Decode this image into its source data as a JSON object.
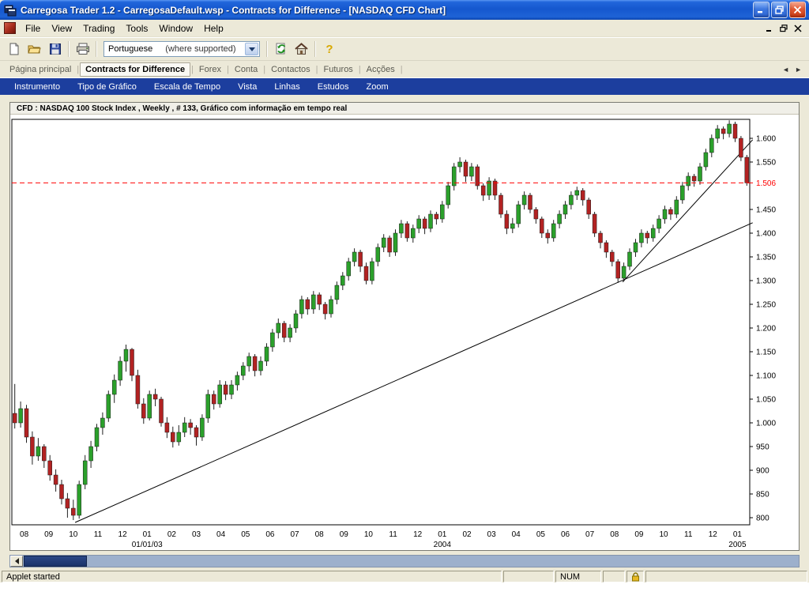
{
  "window": {
    "title": "Carregosa Trader 1.2 - CarregosaDefault.wsp - Contracts for Difference - [NASDAQ CFD Chart]"
  },
  "menu": {
    "items": [
      "File",
      "View",
      "Trading",
      "Tools",
      "Window",
      "Help"
    ]
  },
  "toolbar": {
    "language_value": "Portuguese",
    "language_note": "(where supported)"
  },
  "tabs": {
    "items": [
      {
        "label": "Página principal",
        "active": false
      },
      {
        "label": "Contracts for Difference",
        "active": true
      },
      {
        "label": "Forex",
        "active": false
      },
      {
        "label": "Conta",
        "active": false
      },
      {
        "label": "Contactos",
        "active": false
      },
      {
        "label": "Futuros",
        "active": false
      },
      {
        "label": "Acções",
        "active": false
      }
    ]
  },
  "chart_menu": {
    "items": [
      "Instrumento",
      "Tipo de Gráfico",
      "Escala de Tempo",
      "Vista",
      "Linhas",
      "Estudos",
      "Zoom"
    ]
  },
  "icons": {
    "tab_scroll_left": "◄",
    "tab_scroll_right": "►"
  },
  "status_bar": {
    "message": "Applet started",
    "num": "NUM"
  },
  "chart_data": {
    "type": "candlestick",
    "title": "CFD : NASDAQ 100 Stock Index , Weekly , # 133, Gráfico com informação em tempo real",
    "instrument": "NASDAQ 100 Stock Index",
    "timeframe": "Weekly",
    "colors": {
      "up": "#2BA02B",
      "down": "#B22222",
      "wick": "#222222",
      "trendline": "#000000"
    },
    "y_axis": {
      "min": 785,
      "max": 1640,
      "ticks": [
        {
          "v": 800,
          "label": "800"
        },
        {
          "v": 850,
          "label": "850"
        },
        {
          "v": 900,
          "label": "900"
        },
        {
          "v": 950,
          "label": "950"
        },
        {
          "v": 1000,
          "label": "1.000"
        },
        {
          "v": 1050,
          "label": "1.050"
        },
        {
          "v": 1100,
          "label": "1.100"
        },
        {
          "v": 1150,
          "label": "1.150"
        },
        {
          "v": 1200,
          "label": "1.200"
        },
        {
          "v": 1250,
          "label": "1.250"
        },
        {
          "v": 1300,
          "label": "1.300"
        },
        {
          "v": 1350,
          "label": "1.350"
        },
        {
          "v": 1400,
          "label": "1.400"
        },
        {
          "v": 1450,
          "label": "1.450"
        },
        {
          "v": 1550,
          "label": "1.550"
        },
        {
          "v": 1600,
          "label": "1.600"
        }
      ]
    },
    "current_price": {
      "value": 1506,
      "label": "1.506",
      "color": "#FF0000"
    },
    "x_axis": {
      "month_labels": [
        "08",
        "09",
        "10",
        "11",
        "12",
        "01",
        "02",
        "03",
        "04",
        "05",
        "06",
        "07",
        "08",
        "09",
        "10",
        "11",
        "12",
        "01",
        "02",
        "03",
        "04",
        "05",
        "06",
        "07",
        "08",
        "09",
        "10",
        "11",
        "12",
        "01"
      ],
      "year_labels": [
        {
          "index": 5,
          "label": "01/01/03"
        },
        {
          "index": 17,
          "label": "2004"
        },
        {
          "index": 29,
          "label": "2005"
        }
      ]
    },
    "trendlines": [
      {
        "i1": 10.3,
        "p1": 790,
        "i2": 126,
        "p2": 1422
      },
      {
        "i1": 103.8,
        "p1": 1297,
        "i2": 126,
        "p2": 1597
      }
    ],
    "candles": [
      [
        1020,
        1082,
        988,
        1000
      ],
      [
        1000,
        1045,
        990,
        1030
      ],
      [
        1030,
        1038,
        958,
        970
      ],
      [
        970,
        982,
        912,
        930
      ],
      [
        930,
        968,
        920,
        950
      ],
      [
        950,
        955,
        905,
        920
      ],
      [
        920,
        932,
        878,
        890
      ],
      [
        890,
        902,
        855,
        870
      ],
      [
        870,
        880,
        828,
        840
      ],
      [
        840,
        852,
        800,
        820
      ],
      [
        820,
        838,
        795,
        805
      ],
      [
        805,
        878,
        798,
        870
      ],
      [
        870,
        932,
        860,
        920
      ],
      [
        920,
        962,
        905,
        950
      ],
      [
        950,
        998,
        940,
        990
      ],
      [
        990,
        1022,
        975,
        1010
      ],
      [
        1010,
        1068,
        1002,
        1060
      ],
      [
        1060,
        1102,
        1042,
        1090
      ],
      [
        1090,
        1140,
        1078,
        1130
      ],
      [
        1130,
        1165,
        1108,
        1155
      ],
      [
        1155,
        1158,
        1088,
        1100
      ],
      [
        1100,
        1112,
        1030,
        1040
      ],
      [
        1040,
        1052,
        998,
        1010
      ],
      [
        1010,
        1068,
        1005,
        1060
      ],
      [
        1060,
        1072,
        1035,
        1050
      ],
      [
        1050,
        1055,
        992,
        1000
      ],
      [
        1000,
        1012,
        968,
        980
      ],
      [
        980,
        992,
        948,
        960
      ],
      [
        960,
        995,
        952,
        980
      ],
      [
        980,
        1012,
        970,
        1000
      ],
      [
        1000,
        1008,
        975,
        990
      ],
      [
        990,
        995,
        952,
        970
      ],
      [
        970,
        1018,
        962,
        1010
      ],
      [
        1010,
        1070,
        1000,
        1060
      ],
      [
        1060,
        1068,
        1028,
        1040
      ],
      [
        1040,
        1090,
        1032,
        1080
      ],
      [
        1080,
        1088,
        1048,
        1060
      ],
      [
        1060,
        1090,
        1050,
        1080
      ],
      [
        1080,
        1108,
        1068,
        1100
      ],
      [
        1100,
        1128,
        1090,
        1120
      ],
      [
        1120,
        1148,
        1108,
        1140
      ],
      [
        1140,
        1145,
        1098,
        1110
      ],
      [
        1110,
        1140,
        1100,
        1130
      ],
      [
        1130,
        1168,
        1120,
        1160
      ],
      [
        1160,
        1198,
        1150,
        1190
      ],
      [
        1190,
        1220,
        1178,
        1210
      ],
      [
        1210,
        1215,
        1170,
        1180
      ],
      [
        1180,
        1208,
        1170,
        1200
      ],
      [
        1200,
        1238,
        1190,
        1230
      ],
      [
        1230,
        1268,
        1220,
        1260
      ],
      [
        1260,
        1265,
        1228,
        1240
      ],
      [
        1240,
        1278,
        1230,
        1270
      ],
      [
        1270,
        1275,
        1238,
        1250
      ],
      [
        1250,
        1255,
        1218,
        1230
      ],
      [
        1230,
        1268,
        1222,
        1260
      ],
      [
        1260,
        1298,
        1250,
        1290
      ],
      [
        1290,
        1318,
        1280,
        1310
      ],
      [
        1310,
        1348,
        1300,
        1340
      ],
      [
        1340,
        1368,
        1330,
        1360
      ],
      [
        1360,
        1365,
        1318,
        1330
      ],
      [
        1330,
        1338,
        1292,
        1300
      ],
      [
        1300,
        1348,
        1292,
        1340
      ],
      [
        1340,
        1378,
        1330,
        1370
      ],
      [
        1370,
        1398,
        1360,
        1390
      ],
      [
        1390,
        1395,
        1350,
        1360
      ],
      [
        1360,
        1408,
        1352,
        1400
      ],
      [
        1400,
        1428,
        1390,
        1420
      ],
      [
        1420,
        1425,
        1382,
        1390
      ],
      [
        1390,
        1418,
        1380,
        1410
      ],
      [
        1410,
        1438,
        1400,
        1430
      ],
      [
        1430,
        1435,
        1398,
        1410
      ],
      [
        1410,
        1448,
        1402,
        1440
      ],
      [
        1440,
        1445,
        1418,
        1430
      ],
      [
        1430,
        1468,
        1422,
        1460
      ],
      [
        1460,
        1508,
        1452,
        1500
      ],
      [
        1500,
        1548,
        1490,
        1540
      ],
      [
        1540,
        1560,
        1528,
        1550
      ],
      [
        1550,
        1555,
        1508,
        1520
      ],
      [
        1520,
        1548,
        1510,
        1540
      ],
      [
        1540,
        1545,
        1492,
        1500
      ],
      [
        1500,
        1505,
        1468,
        1480
      ],
      [
        1480,
        1518,
        1470,
        1510
      ],
      [
        1510,
        1515,
        1470,
        1480
      ],
      [
        1480,
        1485,
        1432,
        1440
      ],
      [
        1440,
        1448,
        1398,
        1410
      ],
      [
        1410,
        1432,
        1400,
        1420
      ],
      [
        1420,
        1468,
        1412,
        1460
      ],
      [
        1460,
        1488,
        1450,
        1480
      ],
      [
        1480,
        1485,
        1442,
        1450
      ],
      [
        1450,
        1455,
        1420,
        1430
      ],
      [
        1430,
        1435,
        1390,
        1400
      ],
      [
        1400,
        1408,
        1378,
        1390
      ],
      [
        1390,
        1428,
        1382,
        1420
      ],
      [
        1420,
        1448,
        1410,
        1440
      ],
      [
        1440,
        1468,
        1430,
        1460
      ],
      [
        1460,
        1488,
        1450,
        1480
      ],
      [
        1480,
        1498,
        1470,
        1490
      ],
      [
        1490,
        1495,
        1458,
        1470
      ],
      [
        1470,
        1475,
        1430,
        1440
      ],
      [
        1440,
        1445,
        1392,
        1400
      ],
      [
        1400,
        1405,
        1368,
        1380
      ],
      [
        1380,
        1385,
        1348,
        1360
      ],
      [
        1360,
        1365,
        1330,
        1340
      ],
      [
        1340,
        1345,
        1295,
        1305
      ],
      [
        1305,
        1338,
        1298,
        1330
      ],
      [
        1330,
        1368,
        1322,
        1360
      ],
      [
        1360,
        1388,
        1350,
        1380
      ],
      [
        1380,
        1408,
        1370,
        1400
      ],
      [
        1400,
        1405,
        1378,
        1390
      ],
      [
        1390,
        1418,
        1382,
        1410
      ],
      [
        1410,
        1438,
        1400,
        1430
      ],
      [
        1430,
        1458,
        1420,
        1450
      ],
      [
        1450,
        1455,
        1428,
        1440
      ],
      [
        1440,
        1478,
        1432,
        1470
      ],
      [
        1470,
        1508,
        1462,
        1500
      ],
      [
        1500,
        1528,
        1490,
        1520
      ],
      [
        1520,
        1525,
        1498,
        1510
      ],
      [
        1510,
        1548,
        1502,
        1540
      ],
      [
        1540,
        1578,
        1532,
        1570
      ],
      [
        1570,
        1608,
        1560,
        1600
      ],
      [
        1600,
        1628,
        1590,
        1620
      ],
      [
        1620,
        1625,
        1598,
        1610
      ],
      [
        1610,
        1638,
        1602,
        1630
      ],
      [
        1630,
        1635,
        1592,
        1600
      ],
      [
        1600,
        1605,
        1552,
        1560
      ],
      [
        1560,
        1565,
        1500,
        1506
      ]
    ]
  }
}
